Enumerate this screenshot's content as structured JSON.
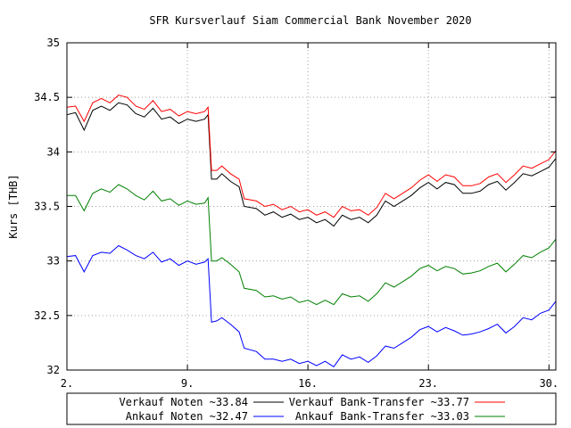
{
  "chart_data": {
    "type": "line",
    "title": "SFR Kursverlauf Siam Commercial Bank November 2020",
    "ylabel": "Kurs [THB]",
    "xlabel": "",
    "ylim": [
      32,
      35
    ],
    "yticks": [
      32,
      32.5,
      33,
      33.5,
      34,
      34.5,
      35
    ],
    "ytick_labels": [
      "32",
      "32.5",
      "33",
      "33.5",
      "34",
      "34.5",
      "35"
    ],
    "xlim": [
      2,
      30.4
    ],
    "xticks": [
      2,
      9,
      16,
      23,
      30
    ],
    "xtick_labels": [
      "2.",
      "9.",
      "16.",
      "23.",
      "30."
    ],
    "grid": true,
    "legend_position": "bottom",
    "series": [
      {
        "name": "Verkauf Noten ~33.84",
        "color": "#000000",
        "points": [
          [
            2,
            34.34
          ],
          [
            2.5,
            34.36
          ],
          [
            3,
            34.2
          ],
          [
            3.5,
            34.38
          ],
          [
            4,
            34.42
          ],
          [
            4.5,
            34.38
          ],
          [
            5,
            34.45
          ],
          [
            5.5,
            34.43
          ],
          [
            6,
            34.35
          ],
          [
            6.5,
            34.32
          ],
          [
            7,
            34.4
          ],
          [
            7.5,
            34.3
          ],
          [
            8,
            34.32
          ],
          [
            8.5,
            34.26
          ],
          [
            9,
            34.3
          ],
          [
            9.5,
            34.28
          ],
          [
            10,
            34.3
          ],
          [
            10.2,
            34.34
          ],
          [
            10.4,
            33.75
          ],
          [
            10.7,
            33.75
          ],
          [
            11,
            33.8
          ],
          [
            11.5,
            33.73
          ],
          [
            12,
            33.68
          ],
          [
            12.3,
            33.5
          ],
          [
            13,
            33.48
          ],
          [
            13.5,
            33.42
          ],
          [
            14,
            33.45
          ],
          [
            14.5,
            33.4
          ],
          [
            15,
            33.43
          ],
          [
            15.5,
            33.38
          ],
          [
            16,
            33.4
          ],
          [
            16.5,
            33.35
          ],
          [
            17,
            33.38
          ],
          [
            17.5,
            33.32
          ],
          [
            18,
            33.42
          ],
          [
            18.5,
            33.38
          ],
          [
            19,
            33.4
          ],
          [
            19.5,
            33.35
          ],
          [
            20,
            33.42
          ],
          [
            20.5,
            33.55
          ],
          [
            21,
            33.5
          ],
          [
            21.5,
            33.55
          ],
          [
            22,
            33.6
          ],
          [
            22.5,
            33.67
          ],
          [
            23,
            33.72
          ],
          [
            23.5,
            33.66
          ],
          [
            24,
            33.72
          ],
          [
            24.5,
            33.7
          ],
          [
            25,
            33.62
          ],
          [
            25.5,
            33.62
          ],
          [
            26,
            33.64
          ],
          [
            26.5,
            33.7
          ],
          [
            27,
            33.73
          ],
          [
            27.5,
            33.65
          ],
          [
            28,
            33.72
          ],
          [
            28.5,
            33.8
          ],
          [
            29,
            33.78
          ],
          [
            29.5,
            33.82
          ],
          [
            30,
            33.86
          ],
          [
            30.4,
            33.94
          ]
        ]
      },
      {
        "name": "Ankauf Noten ~32.47",
        "color": "#0000ff",
        "points": [
          [
            2,
            33.04
          ],
          [
            2.5,
            33.05
          ],
          [
            3,
            32.9
          ],
          [
            3.5,
            33.05
          ],
          [
            4,
            33.08
          ],
          [
            4.5,
            33.07
          ],
          [
            5,
            33.14
          ],
          [
            5.5,
            33.1
          ],
          [
            6,
            33.05
          ],
          [
            6.5,
            33.02
          ],
          [
            7,
            33.08
          ],
          [
            7.5,
            32.99
          ],
          [
            8,
            33.02
          ],
          [
            8.5,
            32.96
          ],
          [
            9,
            33.0
          ],
          [
            9.5,
            32.97
          ],
          [
            10,
            32.99
          ],
          [
            10.2,
            33.02
          ],
          [
            10.4,
            32.44
          ],
          [
            10.7,
            32.45
          ],
          [
            11,
            32.48
          ],
          [
            11.5,
            32.42
          ],
          [
            12,
            32.35
          ],
          [
            12.3,
            32.2
          ],
          [
            13,
            32.17
          ],
          [
            13.5,
            32.1
          ],
          [
            14,
            32.1
          ],
          [
            14.5,
            32.08
          ],
          [
            15,
            32.1
          ],
          [
            15.5,
            32.06
          ],
          [
            16,
            32.08
          ],
          [
            16.5,
            32.04
          ],
          [
            17,
            32.08
          ],
          [
            17.5,
            32.03
          ],
          [
            18,
            32.14
          ],
          [
            18.5,
            32.1
          ],
          [
            19,
            32.12
          ],
          [
            19.5,
            32.07
          ],
          [
            20,
            32.13
          ],
          [
            20.5,
            32.22
          ],
          [
            21,
            32.2
          ],
          [
            21.5,
            32.25
          ],
          [
            22,
            32.3
          ],
          [
            22.5,
            32.37
          ],
          [
            23,
            32.4
          ],
          [
            23.5,
            32.35
          ],
          [
            24,
            32.39
          ],
          [
            24.5,
            32.36
          ],
          [
            25,
            32.32
          ],
          [
            25.5,
            32.33
          ],
          [
            26,
            32.35
          ],
          [
            26.5,
            32.38
          ],
          [
            27,
            32.42
          ],
          [
            27.5,
            32.34
          ],
          [
            28,
            32.4
          ],
          [
            28.5,
            32.48
          ],
          [
            29,
            32.46
          ],
          [
            29.5,
            32.52
          ],
          [
            30,
            32.55
          ],
          [
            30.4,
            32.63
          ]
        ]
      },
      {
        "name": "Verkauf Bank-Transfer ~33.77",
        "color": "#ff0000",
        "points": [
          [
            2,
            34.41
          ],
          [
            2.5,
            34.42
          ],
          [
            3,
            34.28
          ],
          [
            3.5,
            34.45
          ],
          [
            4,
            34.49
          ],
          [
            4.5,
            34.45
          ],
          [
            5,
            34.52
          ],
          [
            5.5,
            34.5
          ],
          [
            6,
            34.42
          ],
          [
            6.5,
            34.39
          ],
          [
            7,
            34.47
          ],
          [
            7.5,
            34.37
          ],
          [
            8,
            34.39
          ],
          [
            8.5,
            34.33
          ],
          [
            9,
            34.37
          ],
          [
            9.5,
            34.35
          ],
          [
            10,
            34.37
          ],
          [
            10.2,
            34.41
          ],
          [
            10.4,
            33.83
          ],
          [
            10.7,
            33.83
          ],
          [
            11,
            33.87
          ],
          [
            11.5,
            33.8
          ],
          [
            12,
            33.75
          ],
          [
            12.3,
            33.57
          ],
          [
            13,
            33.55
          ],
          [
            13.5,
            33.5
          ],
          [
            14,
            33.52
          ],
          [
            14.5,
            33.47
          ],
          [
            15,
            33.5
          ],
          [
            15.5,
            33.45
          ],
          [
            16,
            33.47
          ],
          [
            16.5,
            33.42
          ],
          [
            17,
            33.45
          ],
          [
            17.5,
            33.4
          ],
          [
            18,
            33.5
          ],
          [
            18.5,
            33.46
          ],
          [
            19,
            33.47
          ],
          [
            19.5,
            33.42
          ],
          [
            20,
            33.49
          ],
          [
            20.5,
            33.62
          ],
          [
            21,
            33.57
          ],
          [
            21.5,
            33.62
          ],
          [
            22,
            33.67
          ],
          [
            22.5,
            33.74
          ],
          [
            23,
            33.79
          ],
          [
            23.5,
            33.73
          ],
          [
            24,
            33.79
          ],
          [
            24.5,
            33.77
          ],
          [
            25,
            33.69
          ],
          [
            25.5,
            33.69
          ],
          [
            26,
            33.71
          ],
          [
            26.5,
            33.77
          ],
          [
            27,
            33.8
          ],
          [
            27.5,
            33.72
          ],
          [
            28,
            33.79
          ],
          [
            28.5,
            33.87
          ],
          [
            29,
            33.85
          ],
          [
            29.5,
            33.89
          ],
          [
            30,
            33.93
          ],
          [
            30.4,
            34.01
          ]
        ]
      },
      {
        "name": "Ankauf Bank-Transfer ~33.03",
        "color": "#008000",
        "points": [
          [
            2,
            33.6
          ],
          [
            2.5,
            33.6
          ],
          [
            3,
            33.46
          ],
          [
            3.5,
            33.62
          ],
          [
            4,
            33.66
          ],
          [
            4.5,
            33.63
          ],
          [
            5,
            33.7
          ],
          [
            5.5,
            33.66
          ],
          [
            6,
            33.6
          ],
          [
            6.5,
            33.56
          ],
          [
            7,
            33.64
          ],
          [
            7.5,
            33.55
          ],
          [
            8,
            33.57
          ],
          [
            8.5,
            33.51
          ],
          [
            9,
            33.55
          ],
          [
            9.5,
            33.52
          ],
          [
            10,
            33.53
          ],
          [
            10.2,
            33.58
          ],
          [
            10.4,
            33.0
          ],
          [
            10.7,
            33.0
          ],
          [
            11,
            33.03
          ],
          [
            11.5,
            32.97
          ],
          [
            12,
            32.9
          ],
          [
            12.3,
            32.75
          ],
          [
            13,
            32.73
          ],
          [
            13.5,
            32.67
          ],
          [
            14,
            32.68
          ],
          [
            14.5,
            32.65
          ],
          [
            15,
            32.67
          ],
          [
            15.5,
            32.62
          ],
          [
            16,
            32.64
          ],
          [
            16.5,
            32.6
          ],
          [
            17,
            32.64
          ],
          [
            17.5,
            32.6
          ],
          [
            18,
            32.7
          ],
          [
            18.5,
            32.67
          ],
          [
            19,
            32.68
          ],
          [
            19.5,
            32.63
          ],
          [
            20,
            32.7
          ],
          [
            20.5,
            32.8
          ],
          [
            21,
            32.76
          ],
          [
            21.5,
            32.81
          ],
          [
            22,
            32.86
          ],
          [
            22.5,
            32.93
          ],
          [
            23,
            32.96
          ],
          [
            23.5,
            32.91
          ],
          [
            24,
            32.95
          ],
          [
            24.5,
            32.93
          ],
          [
            25,
            32.88
          ],
          [
            25.5,
            32.89
          ],
          [
            26,
            32.91
          ],
          [
            26.5,
            32.95
          ],
          [
            27,
            32.98
          ],
          [
            27.5,
            32.9
          ],
          [
            28,
            32.97
          ],
          [
            28.5,
            33.05
          ],
          [
            29,
            33.03
          ],
          [
            29.5,
            33.08
          ],
          [
            30,
            33.12
          ],
          [
            30.4,
            33.2
          ]
        ]
      }
    ]
  }
}
